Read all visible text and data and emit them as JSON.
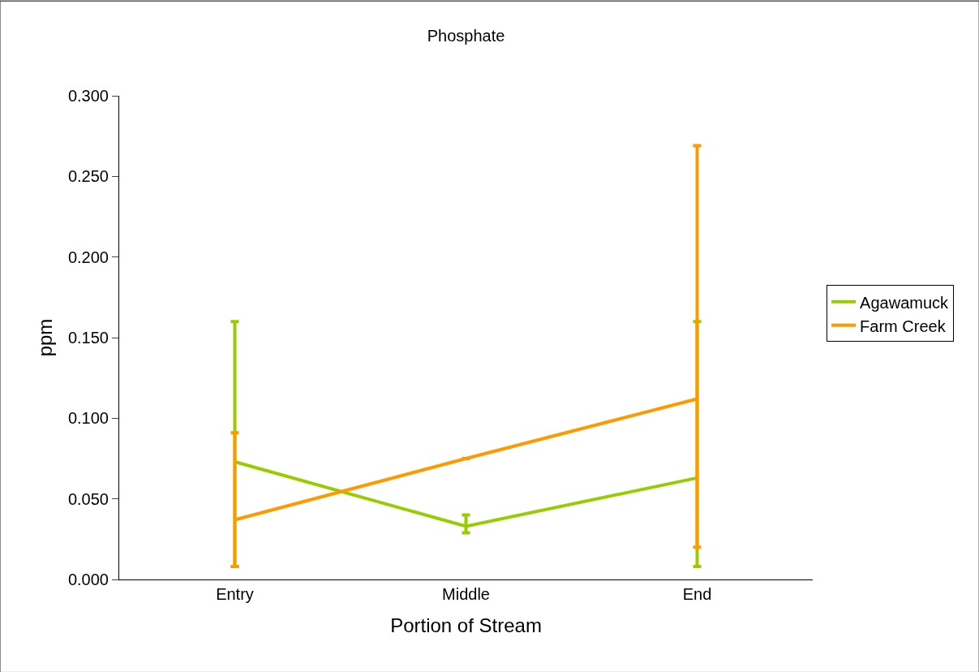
{
  "chart_data": {
    "type": "line",
    "title": "Phosphate",
    "xlabel": "Portion of Stream",
    "ylabel": "ppm",
    "categories": [
      "Entry",
      "Middle",
      "End"
    ],
    "series": [
      {
        "name": "Agawamuck",
        "color": "#99cc00",
        "values": [
          0.073,
          0.033,
          0.063
        ],
        "errors": [
          [
            0.008,
            0.16
          ],
          [
            0.029,
            0.04
          ],
          [
            0.008,
            0.16
          ]
        ]
      },
      {
        "name": "Farm Creek",
        "color": "#ff9900",
        "values": [
          0.037,
          0.075,
          0.112
        ],
        "errors": [
          [
            0.008,
            0.091
          ],
          null,
          [
            0.02,
            0.269
          ]
        ]
      }
    ],
    "ylim": [
      0,
      0.3
    ],
    "yticks": [
      {
        "value": 0,
        "label": "0.000"
      },
      {
        "value": 0.05,
        "label": "0.050"
      },
      {
        "value": 0.1,
        "label": "0.100"
      },
      {
        "value": 0.15,
        "label": "0.150"
      },
      {
        "value": 0.2,
        "label": "0.200"
      },
      {
        "value": 0.25,
        "label": "0.250"
      },
      {
        "value": 0.3,
        "label": "0.300"
      }
    ],
    "grid": false,
    "legend": "right",
    "marker": "none",
    "line_style": "solid"
  }
}
